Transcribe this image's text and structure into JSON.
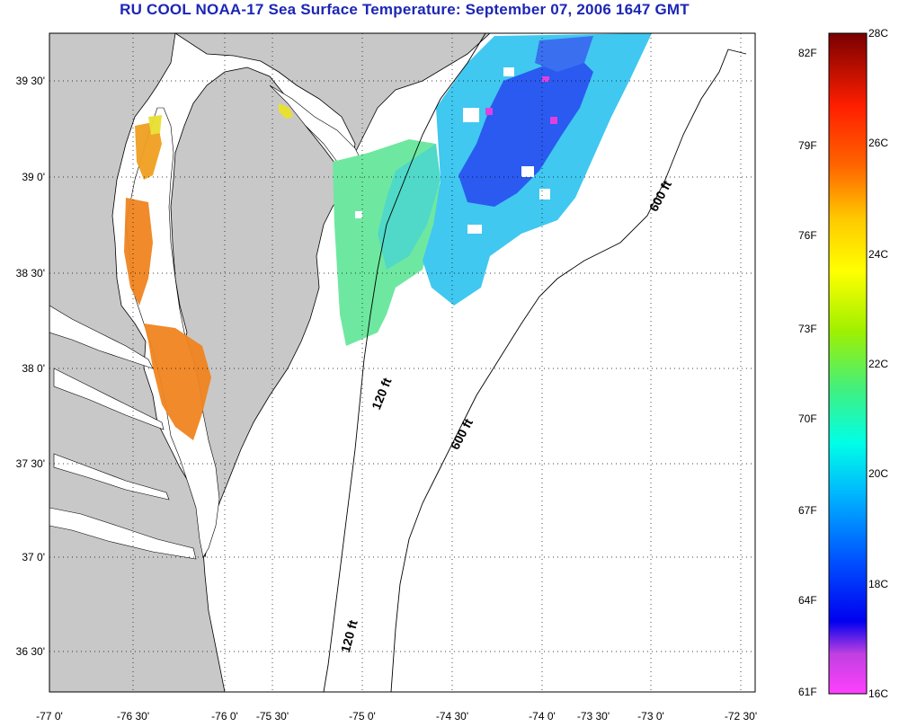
{
  "title": "RU COOL  NOAA-17  Sea Surface Temperature:  September 07, 2006 1647 GMT",
  "lat_labels": [
    "39 30'",
    "39 0'",
    "38 30'",
    "38 0'",
    "37 30'",
    "37 0'",
    "36 30'"
  ],
  "lon_labels": [
    "-77 0'",
    "-76 30'",
    "-76 0'",
    "-75 30'",
    "-75 0'",
    "-74 30'",
    "-74 0'",
    "-73 30'",
    "-73 0'",
    "-72 30'"
  ],
  "colorbar": {
    "fahrenheit_labels": [
      "82F",
      "79F",
      "76F",
      "73F",
      "70F",
      "67F",
      "64F",
      "61F"
    ],
    "celsius_labels": [
      "28C",
      "26C",
      "24C",
      "22C",
      "20C",
      "18C",
      "16C"
    ],
    "colors": [
      "#7a0000",
      "#c80000",
      "#ff2a00",
      "#ff7a00",
      "#ffc800",
      "#ffff00",
      "#b4f000",
      "#40ff80",
      "#00ffff",
      "#00a0ff",
      "#0040ff",
      "#0000f0",
      "#8000c0",
      "#ff40ff"
    ]
  },
  "isobaths": [
    {
      "label": "600 ft"
    },
    {
      "label": "120 ft"
    },
    {
      "label": "600 ft"
    },
    {
      "label": "120 ft"
    }
  ],
  "colors": {
    "land": "#c8c8c8",
    "water": "#ffffff",
    "title": "#1c26b4",
    "bay_sst": "#f08420",
    "shelf_sst": "#40c8f0"
  }
}
